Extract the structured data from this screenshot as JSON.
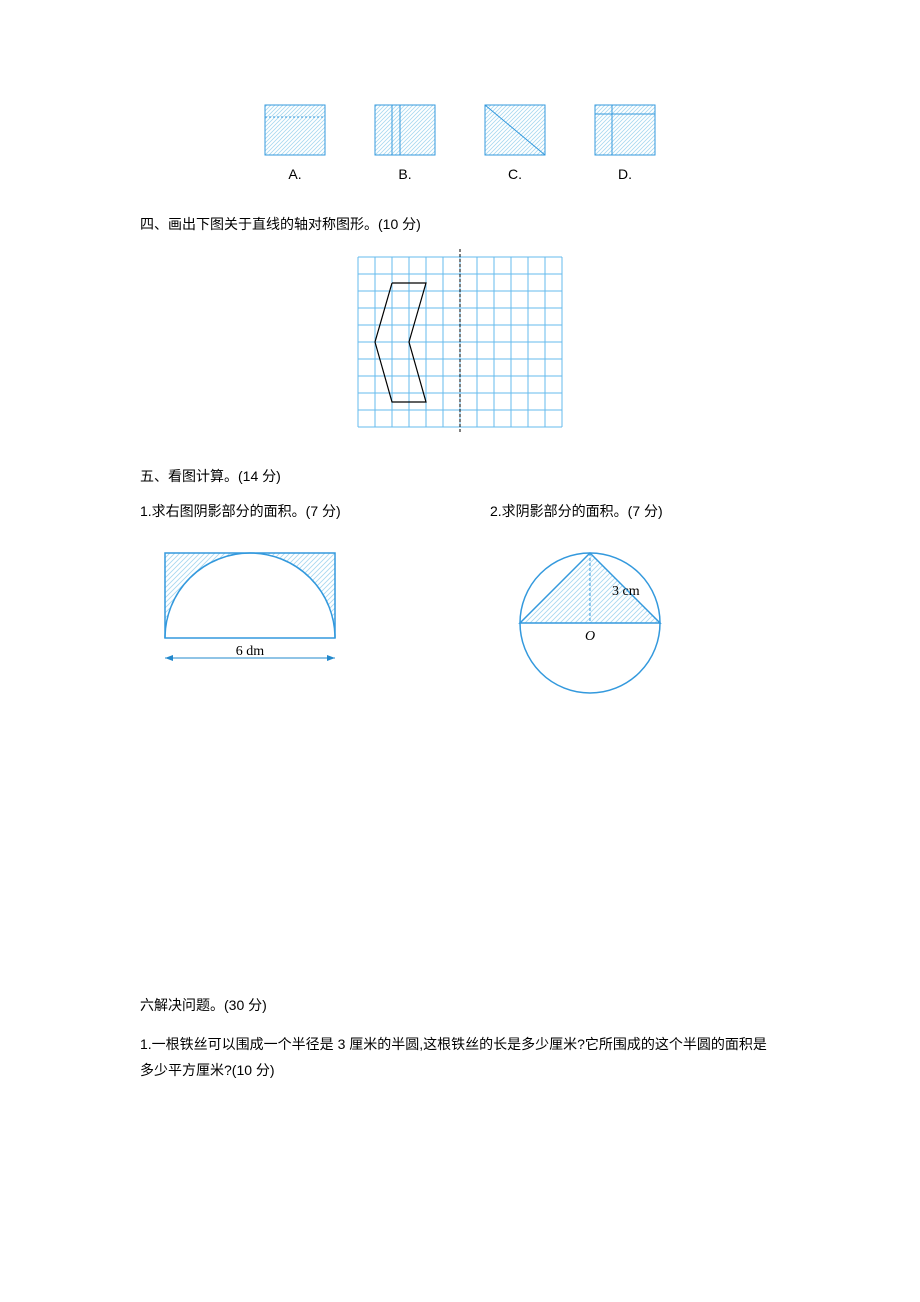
{
  "colors": {
    "stroke": "#3399dd",
    "gridStroke": "#66bbee",
    "dashColor": "#66bbee",
    "hatchColor": "#a8d8f0",
    "black": "#000000",
    "arrow": "#2288cc"
  },
  "optionsRow": {
    "labels": [
      "A.",
      "B.",
      "C.",
      "D."
    ]
  },
  "section4": {
    "heading": "四、画出下图关于直线的轴对称图形。(10 分)",
    "grid": {
      "cols": 12,
      "rows": 10,
      "cell": 17
    }
  },
  "section5": {
    "heading": "五、看图计算。(14 分)",
    "p1": {
      "heading": "1.求右图阴影部分的面积。(7 分)",
      "width_label": "6 dm"
    },
    "p2": {
      "heading": "2.求阴影部分的面积。(7 分)",
      "radius_label": "3 cm",
      "center_label": "O"
    }
  },
  "section6": {
    "heading": "六解决问题。(30 分)",
    "q1": "1.一根铁丝可以围成一个半径是 3 厘米的半圆,这根铁丝的长是多少厘米?它所围成的这个半圆的面积是多少平方厘米?(10 分)"
  }
}
